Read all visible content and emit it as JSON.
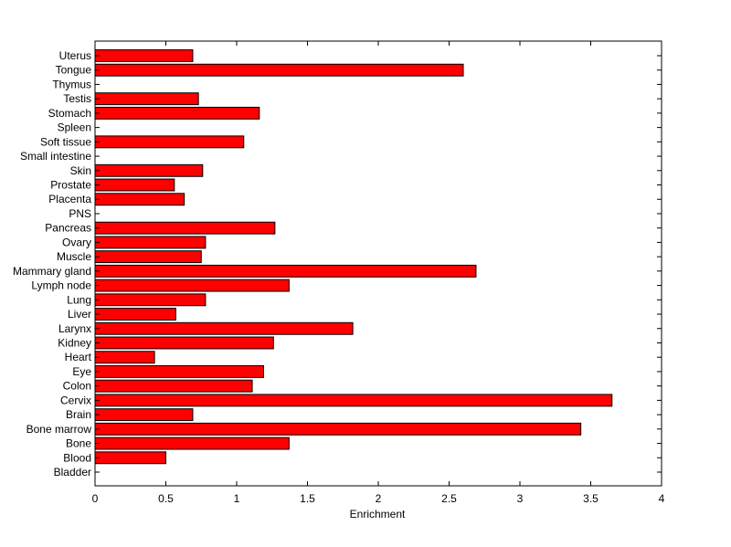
{
  "chart_data": {
    "type": "bar",
    "orientation": "horizontal",
    "title": "",
    "xlabel": "Enrichment",
    "ylabel": "",
    "xlim": [
      0,
      4
    ],
    "xticks": [
      0,
      0.5,
      1,
      1.5,
      2,
      2.5,
      3,
      3.5,
      4
    ],
    "xtick_labels": [
      "0",
      "0.5",
      "1",
      "1.5",
      "2",
      "2.5",
      "3",
      "3.5",
      "4"
    ],
    "bar_color": "#ff0000",
    "edge_color": "#000000",
    "grid": false,
    "categories": [
      "Bladder",
      "Blood",
      "Bone",
      "Bone marrow",
      "Brain",
      "Cervix",
      "Colon",
      "Eye",
      "Heart",
      "Kidney",
      "Larynx",
      "Liver",
      "Lung",
      "Lymph node",
      "Mammary gland",
      "Muscle",
      "Ovary",
      "Pancreas",
      "PNS",
      "Placenta",
      "Prostate",
      "Skin",
      "Small intestine",
      "Soft tissue",
      "Spleen",
      "Stomach",
      "Testis",
      "Thymus",
      "Tongue",
      "Uterus"
    ],
    "values": [
      0,
      0.5,
      1.37,
      3.43,
      0.69,
      3.65,
      1.11,
      1.19,
      0.42,
      1.26,
      1.82,
      0.57,
      0.78,
      1.37,
      2.69,
      0.75,
      0.78,
      1.27,
      0,
      0.63,
      0.56,
      0.76,
      0,
      1.05,
      0,
      1.16,
      0.73,
      0,
      2.6,
      0.69
    ]
  }
}
